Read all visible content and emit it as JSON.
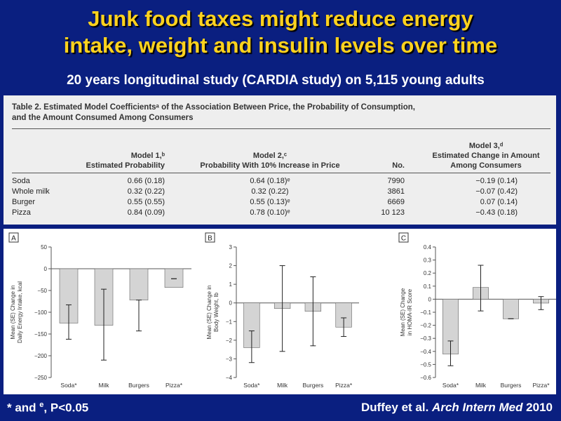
{
  "slide": {
    "title_line1": "Junk food taxes might reduce energy",
    "title_line2": "intake, weight and insulin levels over time",
    "subtitle": "20 years longitudinal study (CARDIA study) on 5,115 young adults",
    "footnote_prefix": "* and ",
    "footnote_sup": "e",
    "footnote_suffix": ", P<0.05",
    "citation_authors": "Duffey et al. ",
    "citation_journal": "Arch Intern Med",
    "citation_year": " 2010"
  },
  "table": {
    "caption_line1": "Table 2. Estimated Model Coefficientsᵃ of the Association Between Price, the Probability of Consumption,",
    "caption_line2": "and the Amount Consumed Among Consumers",
    "headers": {
      "model1_l1": "Model 1,ᵇ",
      "model1_l2": "Estimated Probability",
      "model2_l1": "Model 2,ᶜ",
      "model2_l2": "Probability With 10% Increase in Price",
      "no": "No.",
      "model3_l1": "Model 3,ᵈ",
      "model3_l2": "Estimated Change in Amount",
      "model3_l3": "Among Consumers"
    },
    "rows": [
      {
        "item": "Soda",
        "m1": "0.66 (0.18)",
        "m2": "0.64 (0.18)ᵉ",
        "no": "7990",
        "m3": "−0.19 (0.14)"
      },
      {
        "item": "Whole milk",
        "m1": "0.32 (0.22)",
        "m2": "0.32 (0.22)",
        "no": "3861",
        "m3": "−0.07 (0.42)"
      },
      {
        "item": "Burger",
        "m1": "0.55 (0.55)",
        "m2": "0.55 (0.13)ᵉ",
        "no": "6669",
        "m3": "0.07 (0.14)"
      },
      {
        "item": "Pizza",
        "m1": "0.84 (0.09)",
        "m2": "0.78 (0.10)ᵉ",
        "no": "10 123",
        "m3": "−0.43 (0.18)"
      }
    ]
  },
  "chart_data": [
    {
      "type": "bar",
      "panel": "A",
      "ylabel": "Mean (SE) Change in Daily Energy Intake, kcal",
      "categories": [
        "Soda*",
        "Milk",
        "Burgers",
        "Pizza*"
      ],
      "values": [
        -125,
        -130,
        -72,
        -43
      ],
      "error_low": [
        -162,
        -210,
        -143,
        -23
      ],
      "error_high": [
        -83,
        -47,
        -72,
        -23
      ],
      "ylim": [
        -250,
        50
      ],
      "yticks": [
        50,
        0,
        -50,
        -100,
        -150,
        -200,
        -250
      ],
      "ytick_labels": [
        "50",
        "0",
        "−50",
        "−100",
        "−150",
        "−200",
        "−250"
      ]
    },
    {
      "type": "bar",
      "panel": "B",
      "ylabel": "Mean (SE) Change in Body Weight, lb",
      "categories": [
        "Soda*",
        "Milk",
        "Burgers",
        "Pizza*"
      ],
      "values": [
        -2.4,
        -0.3,
        -0.45,
        -1.3
      ],
      "error_low": [
        -3.2,
        -2.6,
        -2.3,
        -1.8
      ],
      "error_high": [
        -1.5,
        2.0,
        1.4,
        -0.8
      ],
      "ylim": [
        -4,
        3
      ],
      "yticks": [
        3,
        2,
        1,
        0,
        -1,
        -2,
        -3,
        -4
      ],
      "ytick_labels": [
        "3",
        "2",
        "1",
        "0",
        "−1",
        "−2",
        "−3",
        "−4"
      ]
    },
    {
      "type": "bar",
      "panel": "C",
      "ylabel": "Mean (SE) Change in HOMA-IR Score",
      "categories": [
        "Soda*",
        "Milk",
        "Burgers",
        "Pizza*"
      ],
      "values": [
        -0.42,
        0.09,
        -0.15,
        -0.03
      ],
      "error_low": [
        -0.51,
        -0.09,
        -0.15,
        -0.08
      ],
      "error_high": [
        -0.32,
        0.26,
        -0.15,
        0.02
      ],
      "ylim": [
        -0.6,
        0.4
      ],
      "yticks": [
        0.4,
        0.3,
        0.2,
        0.1,
        0,
        -0.1,
        -0.2,
        -0.3,
        -0.4,
        -0.5,
        -0.6
      ],
      "ytick_labels": [
        "0.4",
        "0.3",
        "0.2",
        "0.1",
        "0",
        "−0.1",
        "−0.2",
        "−0.3",
        "−0.4",
        "−0.5",
        "−0.6"
      ]
    }
  ],
  "colors": {
    "background": "#0a1f80",
    "title": "#ffd21e",
    "bar_fill": "#d4d4d4",
    "bar_stroke": "#666666"
  }
}
